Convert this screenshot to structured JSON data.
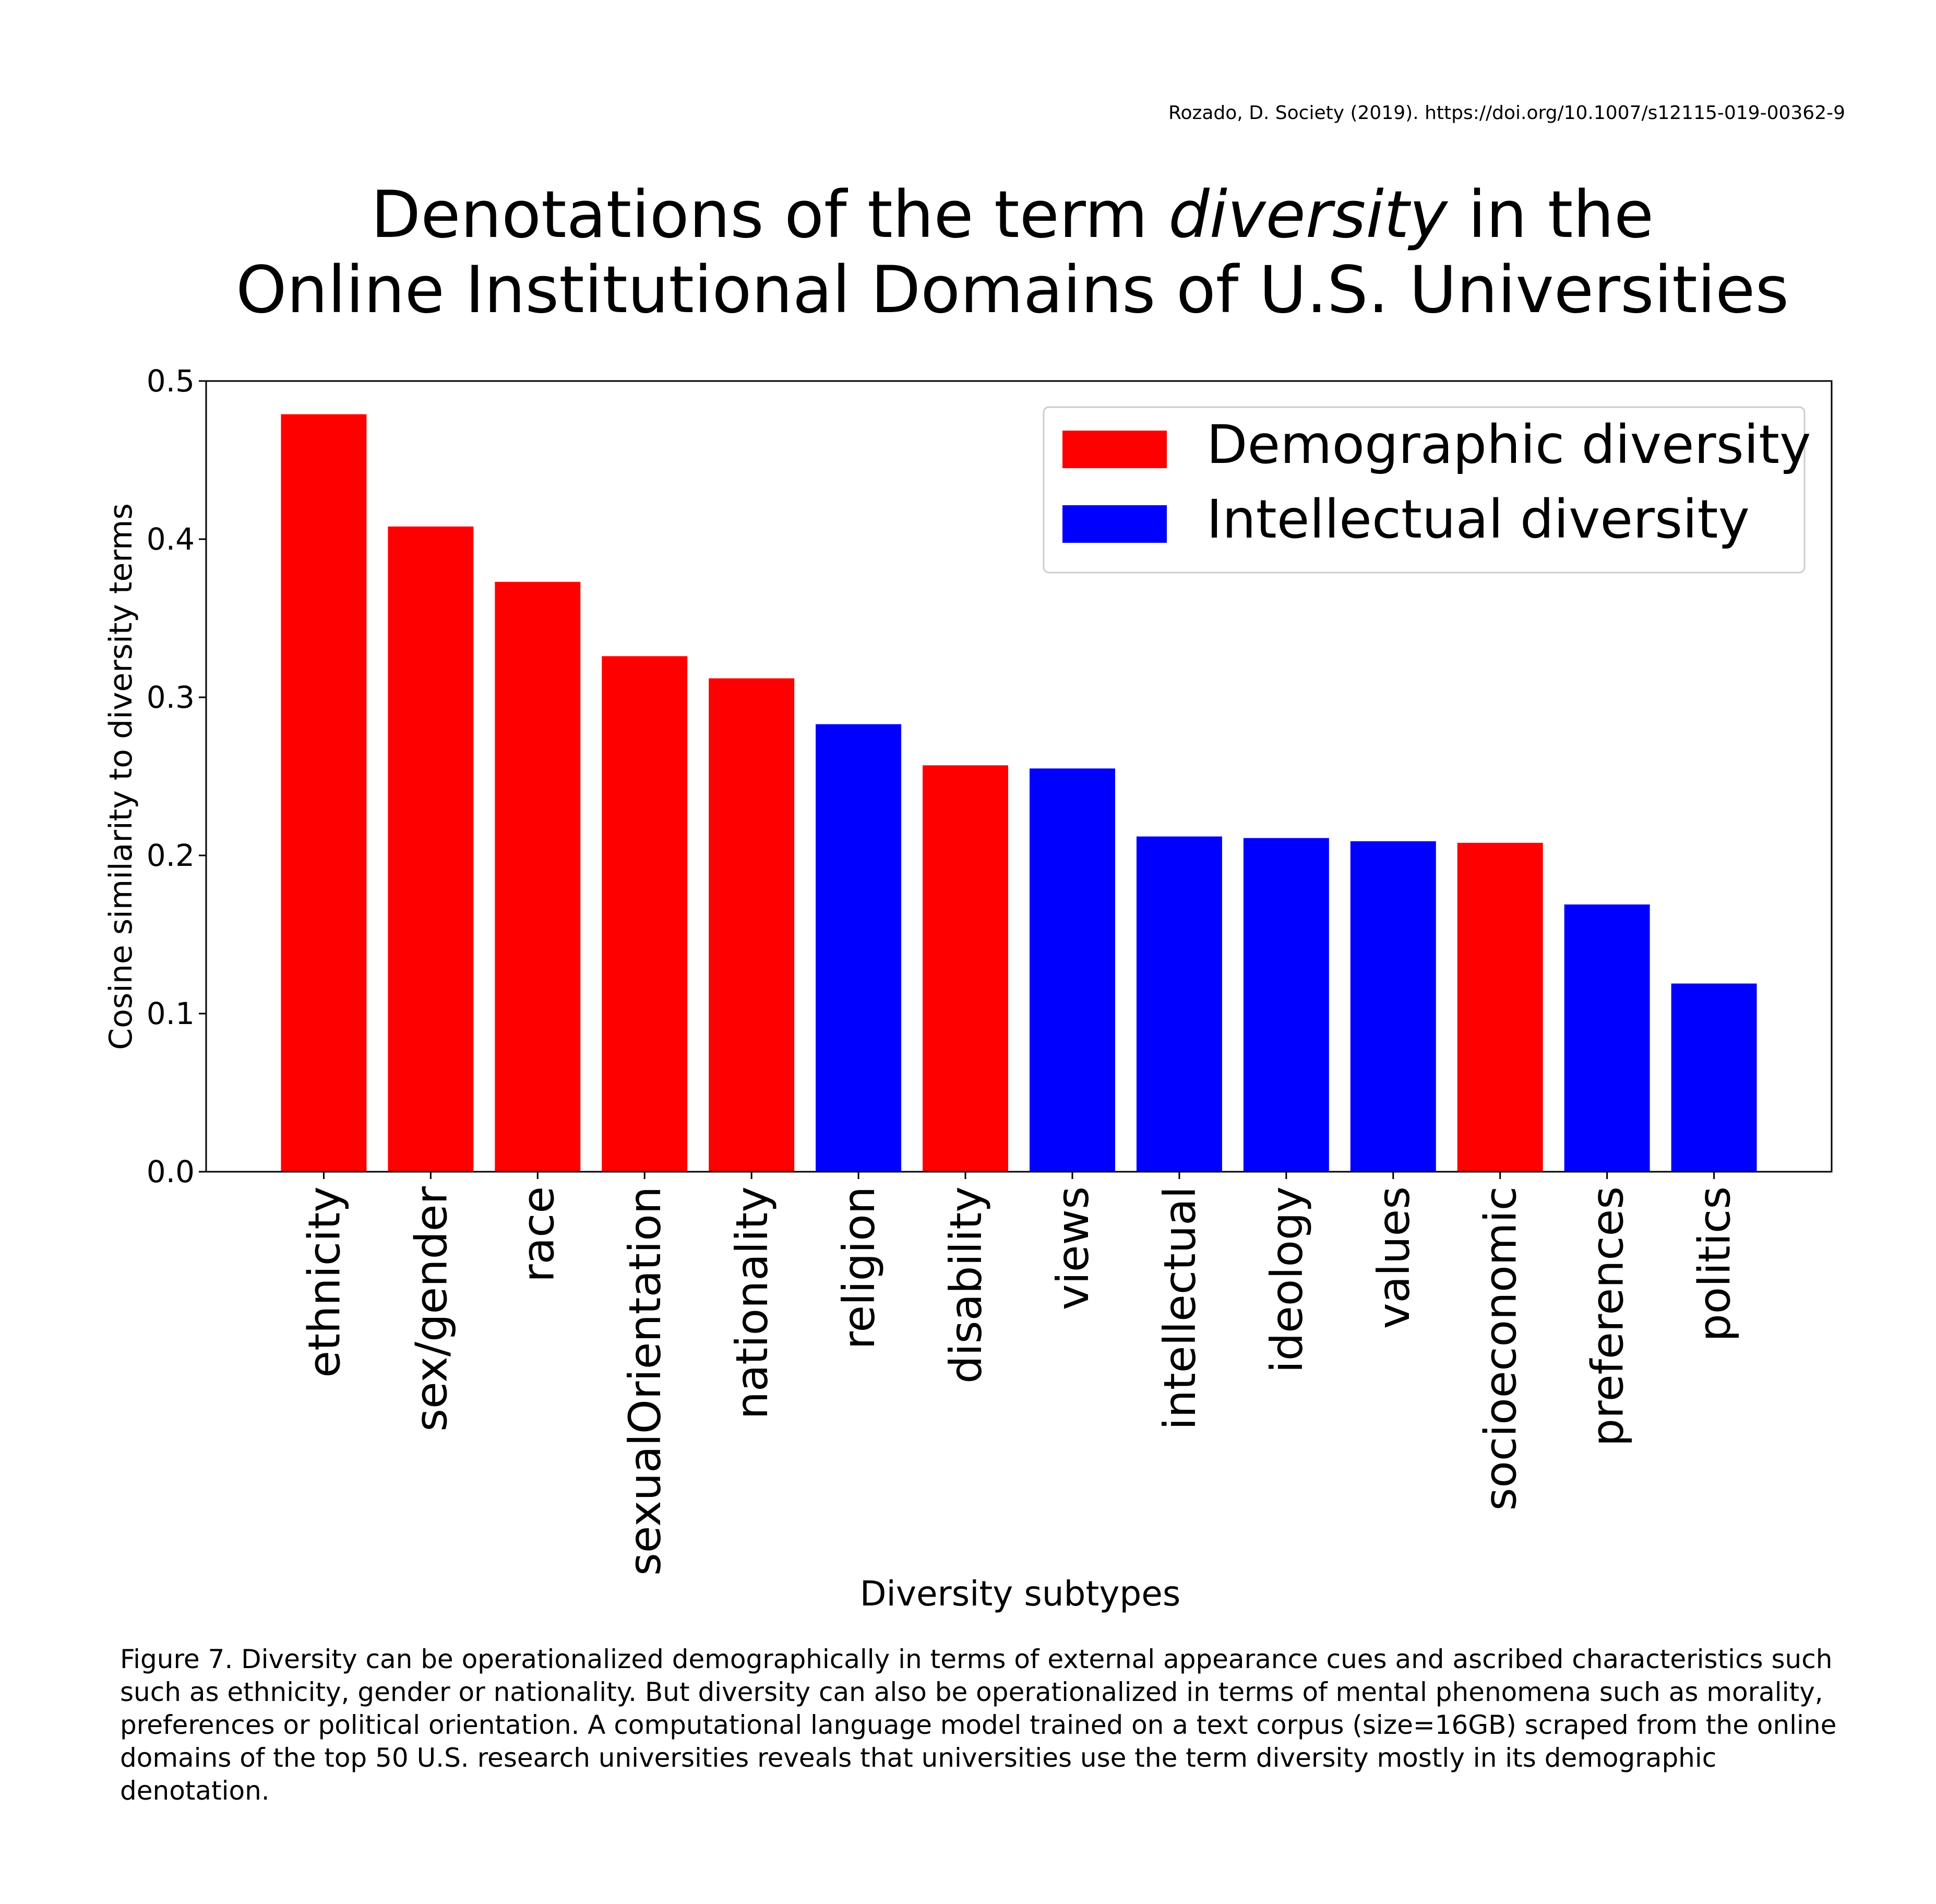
{
  "citation": "Rozado, D. Society (2019). https://doi.org/10.1007/s12115-019-00362-9",
  "title": {
    "line1_pre": "Denotations of the term ",
    "line1_em": "diversity",
    "line1_post": " in the",
    "line2": "Online Institutional Domains of U.S. Universities"
  },
  "colors": {
    "demographic": "#ff0000",
    "intellectual": "#0000ff"
  },
  "chart_data": {
    "type": "bar",
    "xlabel": "Diversity subtypes",
    "ylabel": "Cosine similarity to diversity terms",
    "ylim": [
      0,
      0.5
    ],
    "yticks": [
      "0.0",
      "0.1",
      "0.2",
      "0.3",
      "0.4",
      "0.5"
    ],
    "grid": false,
    "legend_position": "top-right",
    "legend": [
      {
        "name": "Demographic diversity",
        "group": "demographic"
      },
      {
        "name": "Intellectual diversity",
        "group": "intellectual"
      }
    ],
    "categories": [
      "ethnicity",
      "sex/gender",
      "race",
      "sexualOrientation",
      "nationality",
      "religion",
      "disability",
      "views",
      "intellectual",
      "ideology",
      "values",
      "socioeconomic",
      "preferences",
      "politics"
    ],
    "values": [
      0.479,
      0.408,
      0.373,
      0.326,
      0.312,
      0.283,
      0.257,
      0.255,
      0.212,
      0.211,
      0.209,
      0.208,
      0.169,
      0.119
    ],
    "groups": [
      "demographic",
      "demographic",
      "demographic",
      "demographic",
      "demographic",
      "intellectual",
      "demographic",
      "intellectual",
      "intellectual",
      "intellectual",
      "intellectual",
      "demographic",
      "intellectual",
      "intellectual"
    ]
  },
  "caption": "Figure 7. Diversity can be operationalized demographically in terms of external appearance cues and ascribed characteristics such such as ethnicity, gender or nationality. But diversity can also be operationalized in terms of mental phenomena such as morality, preferences or political orientation. A computational language model trained on a text corpus (size=16GB) scraped from the online domains of the top 50 U.S. research universities reveals that universities use the term diversity mostly in its demographic denotation."
}
